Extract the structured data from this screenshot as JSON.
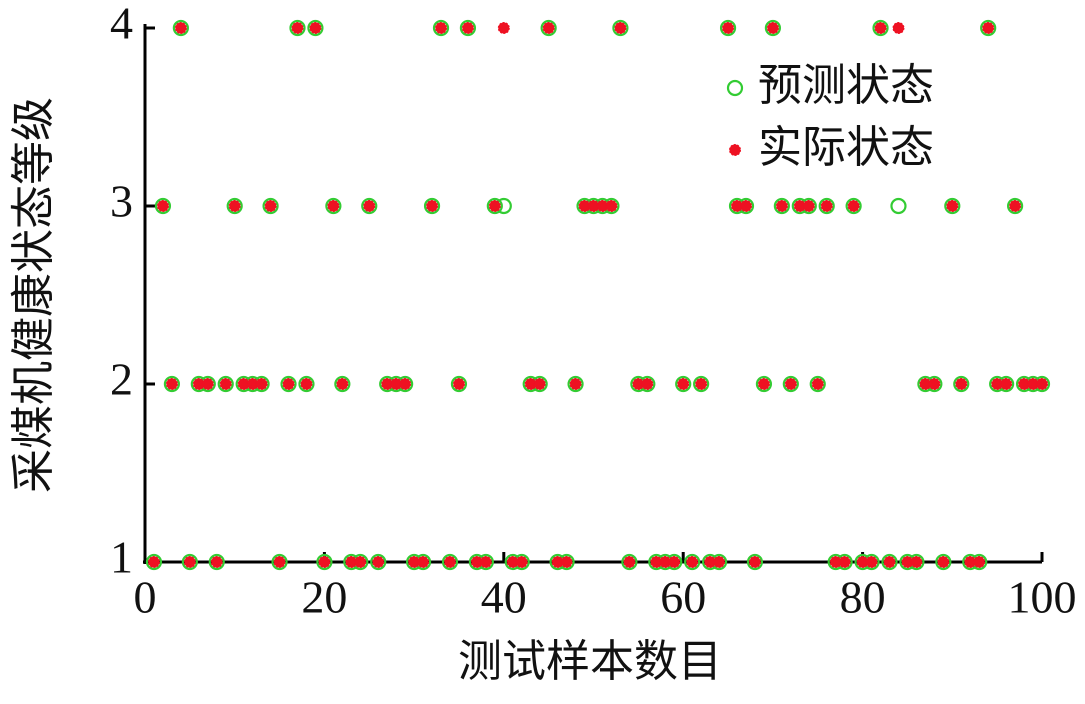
{
  "chart_data": {
    "type": "scatter",
    "xlabel": "测试样本数目",
    "ylabel": "采煤机健康状态等级",
    "x": [
      1,
      2,
      3,
      4,
      5,
      6,
      7,
      8,
      9,
      10,
      11,
      12,
      13,
      14,
      15,
      16,
      17,
      18,
      19,
      20,
      21,
      22,
      23,
      24,
      25,
      26,
      27,
      28,
      29,
      30,
      31,
      32,
      33,
      34,
      35,
      36,
      37,
      38,
      39,
      40,
      41,
      42,
      43,
      44,
      45,
      46,
      47,
      48,
      49,
      50,
      51,
      52,
      53,
      54,
      55,
      56,
      57,
      58,
      59,
      60,
      61,
      62,
      63,
      64,
      65,
      66,
      67,
      68,
      69,
      70,
      71,
      72,
      73,
      74,
      75,
      76,
      77,
      78,
      79,
      80,
      81,
      82,
      83,
      84,
      85,
      86,
      87,
      88,
      89,
      90,
      91,
      92,
      93,
      94,
      95,
      96,
      97,
      98,
      99,
      100
    ],
    "series": [
      {
        "name": "预测状态",
        "color": "#33cc33",
        "marker": "open-circle",
        "values": [
          1,
          3,
          2,
          4,
          1,
          2,
          2,
          1,
          2,
          3,
          2,
          2,
          2,
          3,
          1,
          2,
          4,
          2,
          4,
          1,
          3,
          2,
          1,
          1,
          3,
          1,
          2,
          2,
          2,
          1,
          1,
          3,
          4,
          1,
          2,
          4,
          1,
          1,
          3,
          3,
          1,
          1,
          2,
          2,
          4,
          1,
          1,
          2,
          3,
          3,
          3,
          3,
          4,
          1,
          2,
          2,
          1,
          1,
          1,
          2,
          1,
          2,
          1,
          1,
          4,
          3,
          3,
          1,
          2,
          4,
          3,
          2,
          3,
          3,
          2,
          3,
          1,
          1,
          3,
          1,
          1,
          4,
          1,
          3,
          1,
          1,
          2,
          2,
          1,
          3,
          2,
          1,
          1,
          4,
          2,
          2,
          3,
          2,
          2,
          2
        ]
      },
      {
        "name": "实际状态",
        "color": "#ee1122",
        "marker": "star",
        "values": [
          1,
          3,
          2,
          4,
          1,
          2,
          2,
          1,
          2,
          3,
          2,
          2,
          2,
          3,
          1,
          2,
          4,
          2,
          4,
          1,
          3,
          2,
          1,
          1,
          3,
          1,
          2,
          2,
          2,
          1,
          1,
          3,
          4,
          1,
          2,
          4,
          1,
          1,
          3,
          4,
          1,
          1,
          2,
          2,
          4,
          1,
          1,
          2,
          3,
          3,
          3,
          3,
          4,
          1,
          2,
          2,
          1,
          1,
          1,
          2,
          1,
          2,
          1,
          1,
          4,
          3,
          3,
          1,
          2,
          4,
          3,
          2,
          3,
          3,
          2,
          3,
          1,
          1,
          3,
          1,
          1,
          4,
          1,
          4,
          1,
          1,
          2,
          2,
          1,
          3,
          2,
          1,
          1,
          4,
          2,
          2,
          3,
          2,
          2,
          2
        ]
      }
    ],
    "xlim": [
      0,
      100
    ],
    "ylim": [
      1,
      4
    ],
    "xticks": [
      0,
      20,
      40,
      60,
      80,
      100
    ],
    "yticks": [
      1,
      2,
      3,
      4
    ],
    "legend": "upper-right"
  }
}
